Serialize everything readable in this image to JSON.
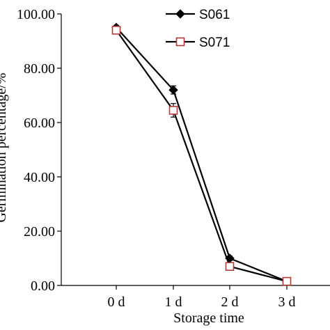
{
  "chart_data": {
    "type": "line",
    "title": "",
    "xlabel": "Storage time",
    "ylabel": "Germination percentage/%",
    "categories": [
      "0 d",
      "1 d",
      "2 d",
      "3 d"
    ],
    "ylim": [
      0,
      100
    ],
    "yticks": [
      "0.00",
      "20.00",
      "40.00",
      "60.00",
      "80.00",
      "100.00"
    ],
    "grid": false,
    "legend_position": "top-right",
    "series": [
      {
        "name": "S061",
        "marker": "diamond",
        "marker_fill": "#000000",
        "values": [
          95.0,
          72.0,
          10.0,
          1.5
        ],
        "errors": [
          0.8,
          1.5,
          0.8,
          0.3
        ]
      },
      {
        "name": "S071",
        "marker": "square",
        "marker_fill": "#ffffff",
        "marker_stroke": "#b03a3a",
        "values": [
          94.0,
          64.5,
          7.0,
          1.5
        ],
        "errors": [
          0.8,
          2.5,
          0.8,
          0.3
        ]
      }
    ]
  }
}
